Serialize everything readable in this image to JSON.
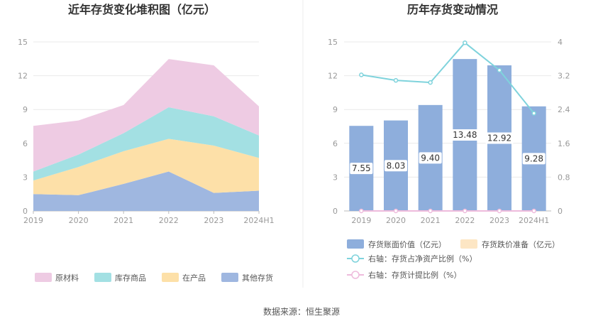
{
  "source_label": "数据来源：恒生聚源",
  "chart_data": [
    {
      "type": "area",
      "stacked": true,
      "title": "近年存货变化堆积图（亿元）",
      "categories": [
        "2019",
        "2020",
        "2021",
        "2022",
        "2023",
        "2024H1"
      ],
      "ylim": [
        0,
        15
      ],
      "yticks": [
        "0",
        "3",
        "6",
        "9",
        "12",
        "15"
      ],
      "grid": true,
      "legend_position": "bottom",
      "series": [
        {
          "name": "其他存货",
          "color": "#9fb7e0",
          "values": [
            1.5,
            1.4,
            2.4,
            3.5,
            1.6,
            1.8
          ]
        },
        {
          "name": "在产品",
          "color": "#fde0a8",
          "values": [
            1.2,
            2.5,
            2.9,
            2.9,
            4.2,
            2.9
          ]
        },
        {
          "name": "库存商品",
          "color": "#a3e0e3",
          "values": [
            0.8,
            1.1,
            1.6,
            2.8,
            2.6,
            2.0
          ]
        },
        {
          "name": "原材料",
          "color": "#eecbe3",
          "values": [
            4.05,
            3.03,
            2.5,
            4.28,
            4.52,
            2.58
          ]
        }
      ],
      "legend_order": [
        "原材料",
        "库存商品",
        "在产品",
        "其他存货"
      ]
    },
    {
      "type": "bar",
      "title": "历年存货变动情况",
      "categories": [
        "2019",
        "2020",
        "2021",
        "2022",
        "2023",
        "2024H1"
      ],
      "ylim": [
        0,
        15
      ],
      "yticks": [
        "0",
        "3",
        "6",
        "9",
        "12",
        "15"
      ],
      "y2lim": [
        0,
        4
      ],
      "y2ticks": [
        "0",
        "0.8",
        "1.6",
        "2.4",
        "3.2",
        "4"
      ],
      "grid": true,
      "legend_position": "bottom",
      "series": [
        {
          "name": "存货账面价值（亿元）",
          "axis": "left",
          "kind": "bar",
          "color": "#8eaedc",
          "values": [
            7.55,
            8.03,
            9.4,
            13.48,
            12.92,
            9.28
          ],
          "labels": [
            "7.55",
            "8.03",
            "9.40",
            "13.48",
            "12.92",
            "9.28"
          ]
        },
        {
          "name": "存货跌价准备（亿元）",
          "axis": "left",
          "kind": "bar",
          "color": "#fde6c4",
          "values": [
            0,
            0,
            0,
            0,
            0,
            0
          ]
        },
        {
          "name": "右轴：存货占净资产比例（%）",
          "axis": "right",
          "kind": "line",
          "color": "#7fd3dc",
          "values": [
            3.22,
            3.09,
            3.04,
            3.98,
            3.33,
            2.31
          ]
        },
        {
          "name": "右轴：存货计提比例（%）",
          "axis": "right",
          "kind": "line",
          "color": "#eebbdc",
          "values": [
            0,
            0,
            0,
            0,
            0,
            0
          ]
        }
      ]
    }
  ]
}
